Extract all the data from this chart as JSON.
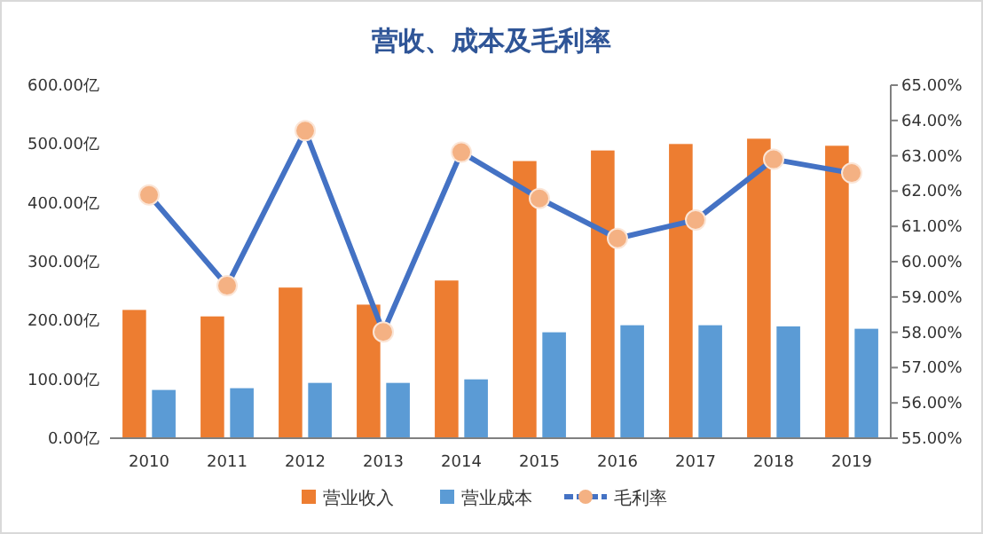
{
  "chart_data": {
    "type": "bar",
    "title": "营收、成本及毛利率",
    "categories": [
      "2010",
      "2011",
      "2012",
      "2013",
      "2014",
      "2015",
      "2016",
      "2017",
      "2018",
      "2019"
    ],
    "series": [
      {
        "name": "营业收入",
        "color": "#ed7d31",
        "values": [
          218,
          207,
          256,
          227,
          268,
          471,
          489,
          500,
          509,
          497
        ]
      },
      {
        "name": "营业成本",
        "color": "#5b9bd5",
        "values": [
          82,
          85,
          94,
          94,
          100,
          180,
          192,
          192,
          190,
          186
        ]
      },
      {
        "name": "毛利率",
        "type": "line",
        "axis": "y2",
        "color": "#4472c4",
        "marker": "circle",
        "values": [
          61.89,
          59.32,
          63.71,
          58.01,
          63.1,
          61.79,
          60.66,
          61.18,
          62.9,
          62.51
        ]
      }
    ],
    "ylim": [
      0,
      600
    ],
    "yticks": [
      {
        "value": 0,
        "label": "0.00亿"
      },
      {
        "value": 100,
        "label": "100.00亿"
      },
      {
        "value": 200,
        "label": "200.00亿"
      },
      {
        "value": 300,
        "label": "300.00亿"
      },
      {
        "value": 400,
        "label": "400.00亿"
      },
      {
        "value": 500,
        "label": "500.00亿"
      },
      {
        "value": 600,
        "label": "600.00亿"
      }
    ],
    "y2lim": [
      55,
      65
    ],
    "y2ticks": [
      {
        "value": 55,
        "label": "55.00%"
      },
      {
        "value": 56,
        "label": "56.00%"
      },
      {
        "value": 57,
        "label": "57.00%"
      },
      {
        "value": 58,
        "label": "58.00%"
      },
      {
        "value": 59,
        "label": "59.00%"
      },
      {
        "value": 60,
        "label": "60.00%"
      },
      {
        "value": 61,
        "label": "61.00%"
      },
      {
        "value": 62,
        "label": "62.00%"
      },
      {
        "value": 63,
        "label": "63.00%"
      },
      {
        "value": 64,
        "label": "64.00%"
      },
      {
        "value": 65,
        "label": "65.00%"
      }
    ],
    "legend": "bottom",
    "grid": false
  }
}
